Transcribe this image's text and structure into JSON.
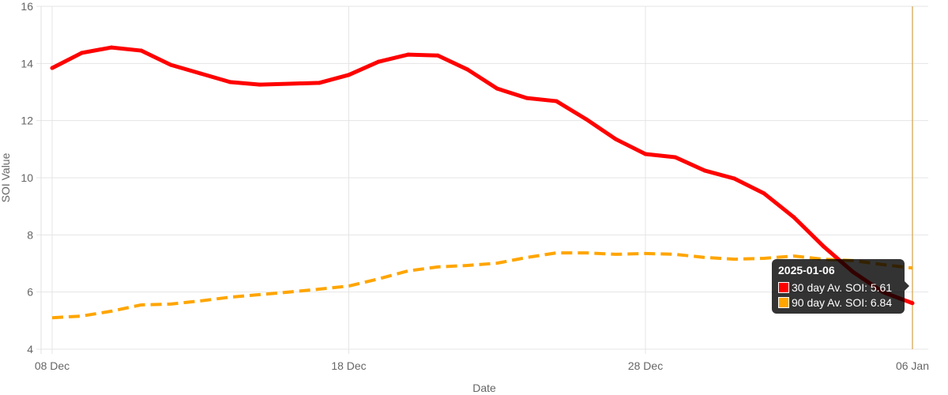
{
  "chart_data": {
    "type": "line",
    "xlabel": "Date",
    "ylabel": "SOI Value",
    "ylim": [
      4,
      16
    ],
    "yticks": [
      "4",
      "6",
      "8",
      "10",
      "12",
      "14",
      "16"
    ],
    "xtick_labels": [
      {
        "index": 0,
        "label": "08 Dec"
      },
      {
        "index": 10,
        "label": "18 Dec"
      },
      {
        "index": 20,
        "label": "28 Dec"
      },
      {
        "index": 29,
        "label": "06 Jan"
      }
    ],
    "x": [
      "2024-12-08",
      "2024-12-09",
      "2024-12-10",
      "2024-12-11",
      "2024-12-12",
      "2024-12-13",
      "2024-12-14",
      "2024-12-15",
      "2024-12-16",
      "2024-12-17",
      "2024-12-18",
      "2024-12-19",
      "2024-12-20",
      "2024-12-21",
      "2024-12-22",
      "2024-12-23",
      "2024-12-24",
      "2024-12-25",
      "2024-12-26",
      "2024-12-27",
      "2024-12-28",
      "2024-12-29",
      "2024-12-30",
      "2024-12-31",
      "2025-01-01",
      "2025-01-02",
      "2025-01-03",
      "2025-01-04",
      "2025-01-05",
      "2025-01-06"
    ],
    "grid": true,
    "series": [
      {
        "name": "30 day Av. SOI",
        "color": "#ff0000",
        "dashed": false,
        "values": [
          13.84,
          14.37,
          14.56,
          14.45,
          13.95,
          13.65,
          13.35,
          13.26,
          13.29,
          13.32,
          13.6,
          14.06,
          14.31,
          14.28,
          13.79,
          13.12,
          12.79,
          12.68,
          12.05,
          11.35,
          10.83,
          10.72,
          10.25,
          9.97,
          9.45,
          8.62,
          7.6,
          6.7,
          6.0,
          5.61
        ]
      },
      {
        "name": "90 day Av. SOI",
        "color": "#ffa500",
        "dashed": true,
        "values": [
          5.1,
          5.16,
          5.33,
          5.55,
          5.58,
          5.69,
          5.82,
          5.91,
          6.0,
          6.1,
          6.21,
          6.46,
          6.74,
          6.88,
          6.93,
          7.01,
          7.21,
          7.37,
          7.37,
          7.32,
          7.35,
          7.32,
          7.21,
          7.15,
          7.18,
          7.26,
          7.15,
          7.1,
          6.96,
          6.84
        ]
      }
    ],
    "hover_index": 29,
    "hover_line_color": "#d4a04a"
  },
  "tooltip": {
    "title": "2025-01-06",
    "rows": [
      "30 day Av. SOI: 5.61",
      "90 day Av. SOI: 6.84"
    ]
  }
}
